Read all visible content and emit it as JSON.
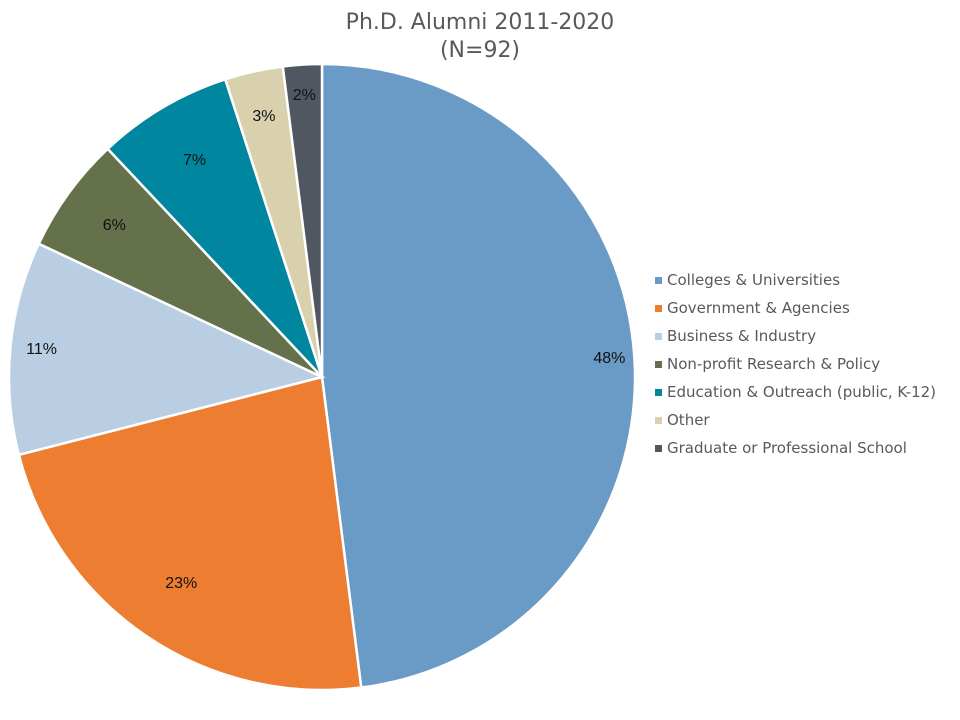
{
  "title": {
    "line1": "Ph.D. Alumni 2011-2020",
    "line2": "(N=92)"
  },
  "chart_data": {
    "type": "pie",
    "title": "Ph.D. Alumni 2011-2020 (N=92)",
    "categories": [
      "Colleges & Universities",
      "Government & Agencies",
      "Business & Industry",
      "Non-profit Research & Policy",
      "Education & Outreach (public, K-12)",
      "Other",
      "Graduate or Professional School"
    ],
    "values": [
      48,
      23,
      11,
      6,
      7,
      3,
      2
    ],
    "labels": [
      "48%",
      "23%",
      "11%",
      "6%",
      "7%",
      "3%",
      "2%"
    ],
    "colors": [
      "#6A9AC6",
      "#ED7D31",
      "#B9CDE3",
      "#65714A",
      "#00869F",
      "#D9D0AE",
      "#515761"
    ],
    "legend_position": "right",
    "start_angle": "12 o'clock, clockwise"
  },
  "legend": [
    {
      "label": "Colleges & Universities",
      "color": "#6A9AC6"
    },
    {
      "label": "Government & Agencies",
      "color": "#ED7D31"
    },
    {
      "label": "Business & Industry",
      "color": "#B9CDE3"
    },
    {
      "label": "Non-profit Research & Policy",
      "color": "#65714A"
    },
    {
      "label": "Education & Outreach (public, K-12)",
      "color": "#00869F"
    },
    {
      "label": "Other",
      "color": "#D9D0AE"
    },
    {
      "label": "Graduate or Professional School",
      "color": "#515761"
    }
  ]
}
